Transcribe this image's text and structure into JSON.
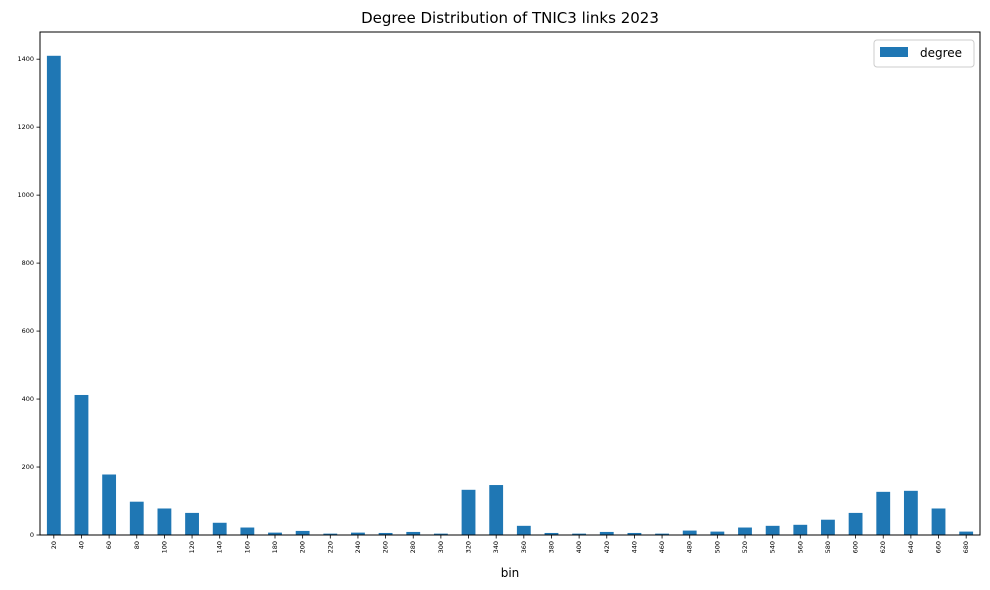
{
  "chart_data": {
    "type": "bar",
    "title": "Degree Distribution of TNIC3 links 2023",
    "xlabel": "bin",
    "ylabel": "",
    "categories": [
      "20",
      "40",
      "60",
      "80",
      "100",
      "120",
      "140",
      "160",
      "180",
      "200",
      "220",
      "240",
      "260",
      "280",
      "300",
      "320",
      "340",
      "360",
      "380",
      "400",
      "420",
      "440",
      "460",
      "480",
      "500",
      "520",
      "540",
      "560",
      "580",
      "600",
      "620",
      "640",
      "660",
      "680"
    ],
    "series": [
      {
        "name": "degree",
        "color": "#1f77b4",
        "values": [
          1410,
          412,
          178,
          98,
          78,
          65,
          36,
          22,
          7,
          12,
          4,
          7,
          6,
          9,
          4,
          133,
          147,
          27,
          6,
          4,
          9,
          6,
          4,
          13,
          10,
          22,
          27,
          30,
          45,
          65,
          127,
          130,
          78,
          10
        ]
      }
    ],
    "ylim": [
      0,
      1480
    ],
    "yticks": [
      0,
      200,
      400,
      600,
      800,
      1000,
      1200,
      1400
    ],
    "grid": false,
    "legend_position": "top-right"
  }
}
